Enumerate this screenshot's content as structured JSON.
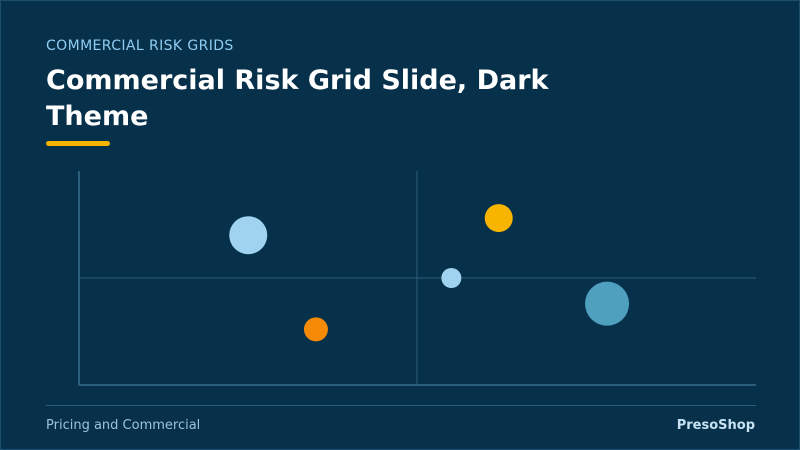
{
  "header": {
    "eyebrow": "COMMERCIAL RISK GRIDS",
    "title": "Commercial Risk Grid Slide, Dark Theme"
  },
  "footer": {
    "left": "Pricing and Commercial",
    "right": "PresoShop"
  },
  "colors": {
    "background": "#07304a",
    "accent": "#f4b400",
    "axis": "#2c5f7c",
    "light_blue": "#9fd3f0",
    "steel_blue": "#4f9fbf",
    "orange": "#f58a07",
    "amber": "#f7b500"
  },
  "chart_data": {
    "type": "scatter",
    "grid": "2x2 quadrants",
    "xlim": [
      0,
      1
    ],
    "ylim": [
      0,
      1
    ],
    "points": [
      {
        "x": 0.25,
        "y": 0.7,
        "size": 19,
        "color": "#9fd3f0"
      },
      {
        "x": 0.35,
        "y": 0.26,
        "size": 12,
        "color": "#f58a07"
      },
      {
        "x": 0.55,
        "y": 0.5,
        "size": 10,
        "color": "#9fd3f0"
      },
      {
        "x": 0.62,
        "y": 0.78,
        "size": 14,
        "color": "#f7b500"
      },
      {
        "x": 0.78,
        "y": 0.38,
        "size": 22,
        "color": "#4f9fbf"
      }
    ]
  }
}
